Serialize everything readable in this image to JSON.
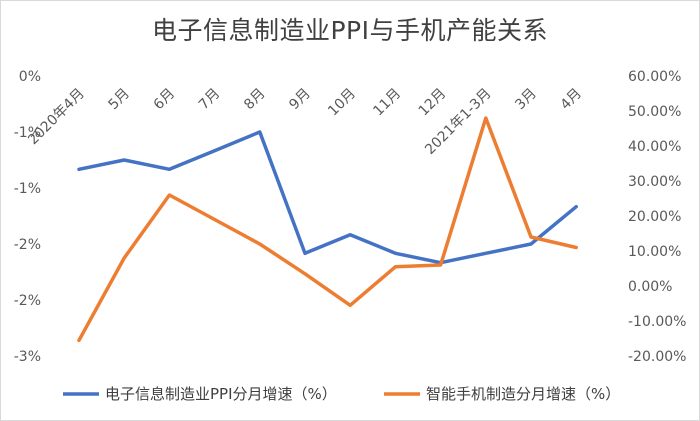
{
  "chart_data": {
    "type": "line",
    "title": "电子信息制造业PPI与手机产能关系",
    "categories": [
      "2020年4月",
      "5月",
      "6月",
      "7月",
      "8月",
      "9月",
      "10月",
      "11月",
      "12月",
      "2021年1-3月",
      "3月",
      "4月"
    ],
    "left_axis": {
      "ylim": [
        -3,
        0
      ],
      "tick_labels": [
        "0%",
        "-1%",
        "-1%",
        "-2%",
        "-2%",
        "-3%"
      ]
    },
    "right_axis": {
      "ylim": [
        -20,
        60
      ],
      "tick_labels": [
        "60.00%",
        "50.00%",
        "40.00%",
        "30.00%",
        "20.00%",
        "10.00%",
        "0.00%",
        "-10.00%",
        "-20.00%"
      ]
    },
    "series": [
      {
        "name": "电子信息制造业PPI分月增速（%）",
        "axis": "left",
        "color": "#4472c4",
        "values": [
          -1.0,
          -0.9,
          -1.0,
          -0.8,
          -0.6,
          -1.9,
          -1.7,
          -1.9,
          -2.0,
          -1.9,
          -1.8,
          -1.4
        ]
      },
      {
        "name": "智能手机制造分月增速（%）",
        "axis": "right",
        "color": "#ed7d31",
        "values": [
          -15.5,
          8.0,
          26.0,
          19.0,
          12.0,
          3.5,
          -5.5,
          5.5,
          6.0,
          48.0,
          14.0,
          11.0
        ]
      }
    ],
    "grid": false,
    "legend": "bottom"
  }
}
